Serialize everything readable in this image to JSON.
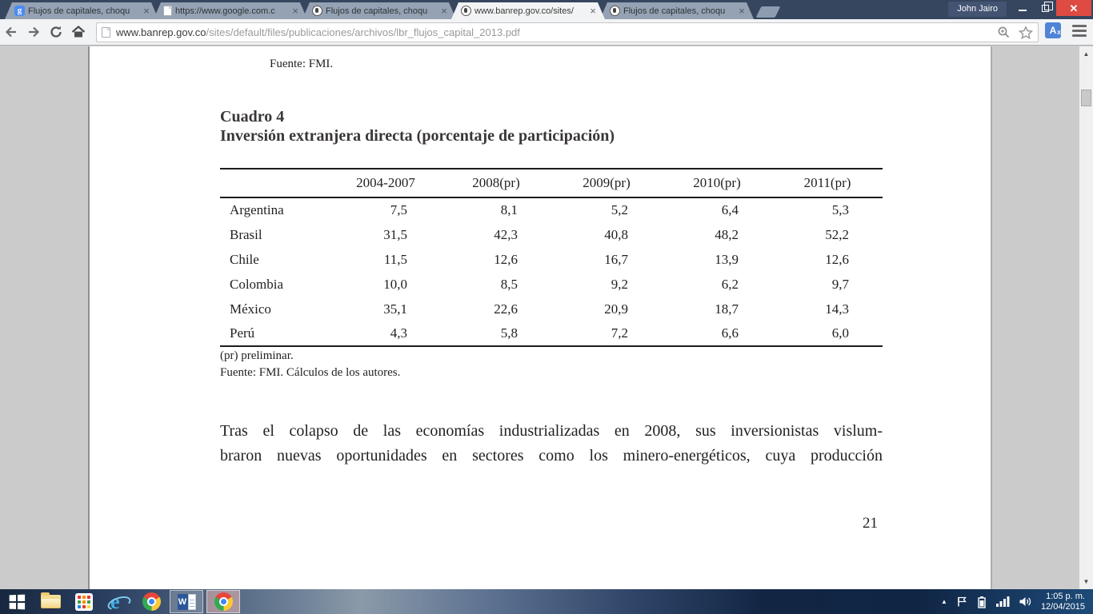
{
  "browser": {
    "user_button": "John Jairo",
    "tabs": [
      {
        "title": "Flujos de capitales, choqu",
        "icon": "google",
        "active": false
      },
      {
        "title": "https://www.google.com.c",
        "icon": "page",
        "active": false
      },
      {
        "title": "Flujos de capitales, choqu",
        "icon": "banrep",
        "active": false
      },
      {
        "title": "www.banrep.gov.co/sites/",
        "icon": "banrep",
        "active": true
      },
      {
        "title": "Flujos de capitales, choqu",
        "icon": "banrep",
        "active": false
      }
    ],
    "url": {
      "host": "www.banrep.gov.co",
      "path": "/sites/default/files/publicaciones/archivos/lbr_flujos_capital_2013.pdf"
    },
    "colors": {
      "titlebar": "#36465F",
      "active_tab": "#F2F3F4",
      "inactive_tab": "#95A2B3",
      "close_button": "#DD4B42"
    }
  },
  "pdf": {
    "top_source_note": "Fuente: FMI.",
    "heading_label": "Cuadro 4",
    "heading_title": "Inversión extranjera directa (porcentaje de participación)",
    "footnotes": [
      "(pr) preliminar.",
      "Fuente: FMI. Cálculos de los autores."
    ],
    "paragraph_line1": "Tras el colapso de las economías industrializadas en 2008, sus inversionistas vislum-",
    "paragraph_line2": "braron nuevas oportunidades en sectores como los minero-energéticos, cuya producción",
    "page_number": "21"
  },
  "chart_data": {
    "type": "table",
    "title": "Cuadro 4 — Inversión extranjera directa (porcentaje de participación)",
    "columns": [
      "",
      "2004-2007",
      "2008(pr)",
      "2009(pr)",
      "2010(pr)",
      "2011(pr)"
    ],
    "rows": [
      {
        "label": "Argentina",
        "values": [
          "7,5",
          "8,1",
          "5,2",
          "6,4",
          "5,3"
        ]
      },
      {
        "label": "Brasil",
        "values": [
          "31,5",
          "42,3",
          "40,8",
          "48,2",
          "52,2"
        ]
      },
      {
        "label": "Chile",
        "values": [
          "11,5",
          "12,6",
          "16,7",
          "13,9",
          "12,6"
        ]
      },
      {
        "label": "Colombia",
        "values": [
          "10,0",
          "8,5",
          "9,2",
          "6,2",
          "9,7"
        ]
      },
      {
        "label": "México",
        "values": [
          "35,1",
          "22,6",
          "20,9",
          "18,7",
          "14,3"
        ]
      },
      {
        "label": "Perú",
        "values": [
          "4,3",
          "5,8",
          "7,2",
          "6,6",
          "6,0"
        ]
      }
    ]
  },
  "taskbar": {
    "pinned_apps": [
      "start",
      "file-explorer",
      "app-grid",
      "internet-explorer",
      "chrome",
      "word",
      "chrome-active"
    ],
    "tray_time": "1:05 p. m.",
    "tray_date": "12/04/2015"
  }
}
